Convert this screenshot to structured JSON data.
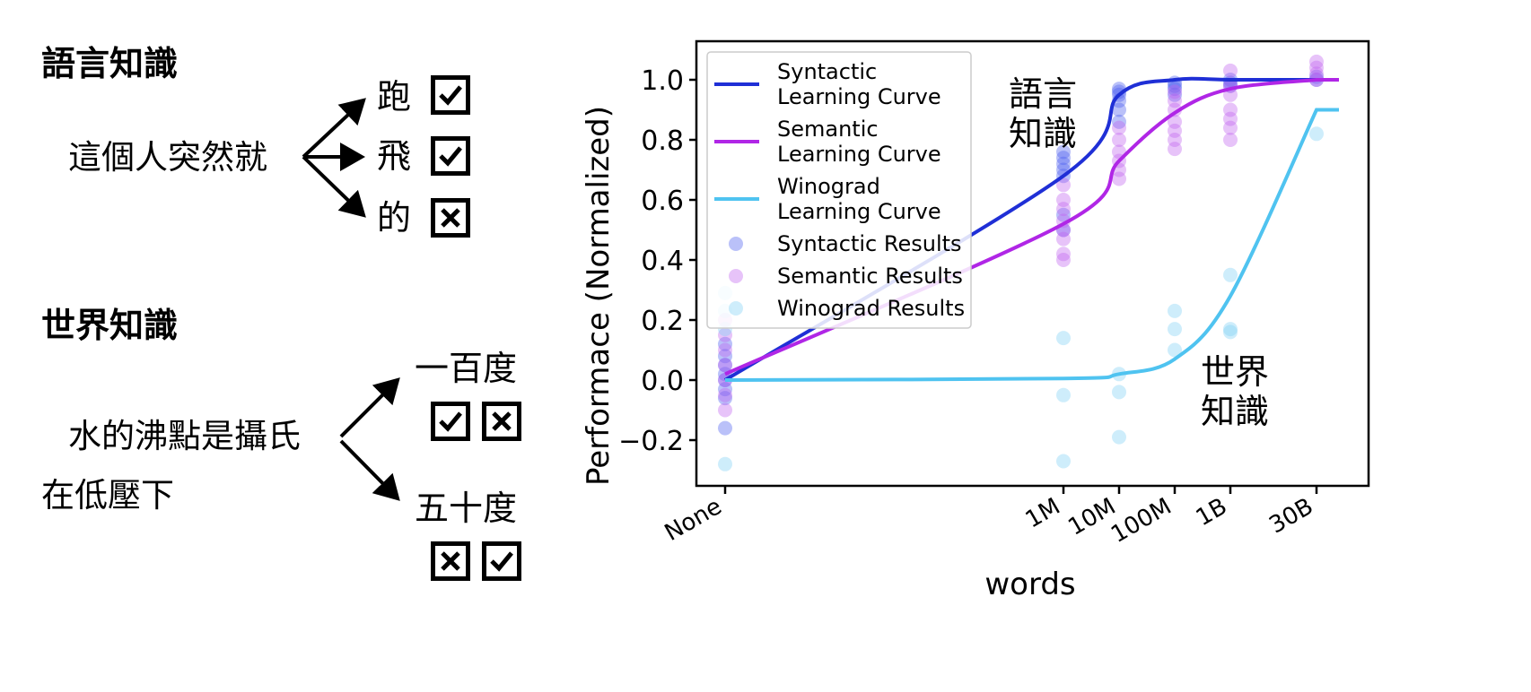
{
  "left_panel": {
    "linguistic": {
      "heading": "語言知識",
      "sentence": "這個人突然就",
      "options": [
        {
          "label": "跑",
          "marks": [
            "check"
          ]
        },
        {
          "label": "飛",
          "marks": [
            "check"
          ]
        },
        {
          "label": "的",
          "marks": [
            "cross"
          ]
        }
      ]
    },
    "world": {
      "heading": "世界知識",
      "sentence_line1": "水的沸點是攝氏",
      "sentence_line2": "在低壓下",
      "options": [
        {
          "label": "一百度",
          "marks": [
            "check",
            "cross"
          ]
        },
        {
          "label": "五十度",
          "marks": [
            "cross",
            "check"
          ]
        }
      ]
    }
  },
  "chart_data": {
    "type": "scatter",
    "title": "",
    "xlabel": "words",
    "ylabel": "Performace (Normalized)",
    "x_scale": "log10 word count, 'None' placed at far left",
    "categories": [
      "None",
      "1M",
      "10M",
      "100M",
      "1B",
      "30B"
    ],
    "ylim": [
      -0.35,
      1.13
    ],
    "yticks": [
      -0.2,
      0.0,
      0.2,
      0.4,
      0.6,
      0.8,
      1.0
    ],
    "grid": false,
    "legend_position": "top-left",
    "series": [
      {
        "name": "Syntactic Learning Curve",
        "kind": "line",
        "color": "#1f2fd6",
        "points": [
          [
            "None",
            0.0
          ],
          [
            "1M",
            0.68
          ],
          [
            "10M",
            0.95
          ],
          [
            "100M",
            1.0
          ],
          [
            "1B",
            1.0
          ],
          [
            "30B",
            1.0
          ]
        ]
      },
      {
        "name": "Semantic Learning Curve",
        "kind": "line",
        "color": "#b026e6",
        "points": [
          [
            "None",
            0.02
          ],
          [
            "1M",
            0.52
          ],
          [
            "10M",
            0.73
          ],
          [
            "100M",
            0.89
          ],
          [
            "1B",
            0.97
          ],
          [
            "30B",
            1.0
          ]
        ]
      },
      {
        "name": "Winograd Learning Curve",
        "kind": "line",
        "color": "#4fc3f0",
        "points": [
          [
            "None",
            0.0
          ],
          [
            "1M",
            0.005
          ],
          [
            "10M",
            0.02
          ],
          [
            "100M",
            0.07
          ],
          [
            "1B",
            0.28
          ],
          [
            "30B",
            0.9
          ]
        ]
      },
      {
        "name": "Syntactic Results",
        "kind": "scatter",
        "color": "#4a5cf0",
        "points": [
          [
            "None",
            0.08
          ],
          [
            "None",
            0.05
          ],
          [
            "None",
            0.02
          ],
          [
            "None",
            0.0
          ],
          [
            "None",
            -0.03
          ],
          [
            "None",
            -0.06
          ],
          [
            "None",
            -0.16
          ],
          [
            "None",
            0.12
          ],
          [
            "1M",
            0.76
          ],
          [
            "1M",
            0.74
          ],
          [
            "1M",
            0.72
          ],
          [
            "1M",
            0.7
          ],
          [
            "1M",
            0.68
          ],
          [
            "1M",
            0.55
          ],
          [
            "1M",
            0.5
          ],
          [
            "10M",
            0.97
          ],
          [
            "10M",
            0.96
          ],
          [
            "10M",
            0.95
          ],
          [
            "10M",
            0.93
          ],
          [
            "10M",
            0.9
          ],
          [
            "10M",
            0.86
          ],
          [
            "100M",
            0.99
          ],
          [
            "100M",
            0.98
          ],
          [
            "100M",
            0.97
          ],
          [
            "100M",
            0.95
          ],
          [
            "1B",
            1.0
          ],
          [
            "1B",
            0.99
          ],
          [
            "1B",
            0.98
          ],
          [
            "30B",
            1.0
          ],
          [
            "30B",
            1.01
          ]
        ]
      },
      {
        "name": "Semantic Results",
        "kind": "scatter",
        "color": "#c060f0",
        "points": [
          [
            "None",
            0.2
          ],
          [
            "None",
            0.15
          ],
          [
            "None",
            0.1
          ],
          [
            "None",
            0.05
          ],
          [
            "None",
            0.0
          ],
          [
            "None",
            -0.05
          ],
          [
            "None",
            -0.1
          ],
          [
            "1M",
            0.65
          ],
          [
            "1M",
            0.6
          ],
          [
            "1M",
            0.57
          ],
          [
            "1M",
            0.53
          ],
          [
            "1M",
            0.5
          ],
          [
            "1M",
            0.47
          ],
          [
            "1M",
            0.42
          ],
          [
            "1M",
            0.4
          ],
          [
            "10M",
            0.84
          ],
          [
            "10M",
            0.8
          ],
          [
            "10M",
            0.76
          ],
          [
            "10M",
            0.73
          ],
          [
            "10M",
            0.7
          ],
          [
            "10M",
            0.67
          ],
          [
            "100M",
            0.96
          ],
          [
            "100M",
            0.93
          ],
          [
            "100M",
            0.9
          ],
          [
            "100M",
            0.86
          ],
          [
            "100M",
            0.83
          ],
          [
            "100M",
            0.8
          ],
          [
            "100M",
            0.77
          ],
          [
            "1B",
            1.03
          ],
          [
            "1B",
            0.98
          ],
          [
            "1B",
            0.95
          ],
          [
            "1B",
            0.9
          ],
          [
            "1B",
            0.87
          ],
          [
            "1B",
            0.84
          ],
          [
            "1B",
            0.8
          ],
          [
            "30B",
            1.06
          ],
          [
            "30B",
            1.04
          ],
          [
            "30B",
            1.02
          ],
          [
            "30B",
            1.0
          ]
        ]
      },
      {
        "name": "Winograd Results",
        "kind": "scatter",
        "color": "#7fd0f5",
        "points": [
          [
            "None",
            0.29
          ],
          [
            "None",
            0.23
          ],
          [
            "None",
            0.17
          ],
          [
            "None",
            -0.28
          ],
          [
            "1M",
            0.14
          ],
          [
            "1M",
            -0.05
          ],
          [
            "1M",
            -0.27
          ],
          [
            "10M",
            0.02
          ],
          [
            "10M",
            -0.04
          ],
          [
            "10M",
            -0.19
          ],
          [
            "100M",
            0.23
          ],
          [
            "100M",
            0.17
          ],
          [
            "100M",
            0.1
          ],
          [
            "1B",
            0.35
          ],
          [
            "1B",
            0.17
          ],
          [
            "1B",
            0.16
          ],
          [
            "30B",
            0.82
          ]
        ]
      }
    ],
    "annotations": [
      {
        "text_lines": [
          "語言",
          "知識"
        ],
        "x": "1M",
        "y": 1.0
      },
      {
        "text_lines": [
          "世界",
          "知識"
        ],
        "x": "1B",
        "y": 0.07
      }
    ]
  }
}
